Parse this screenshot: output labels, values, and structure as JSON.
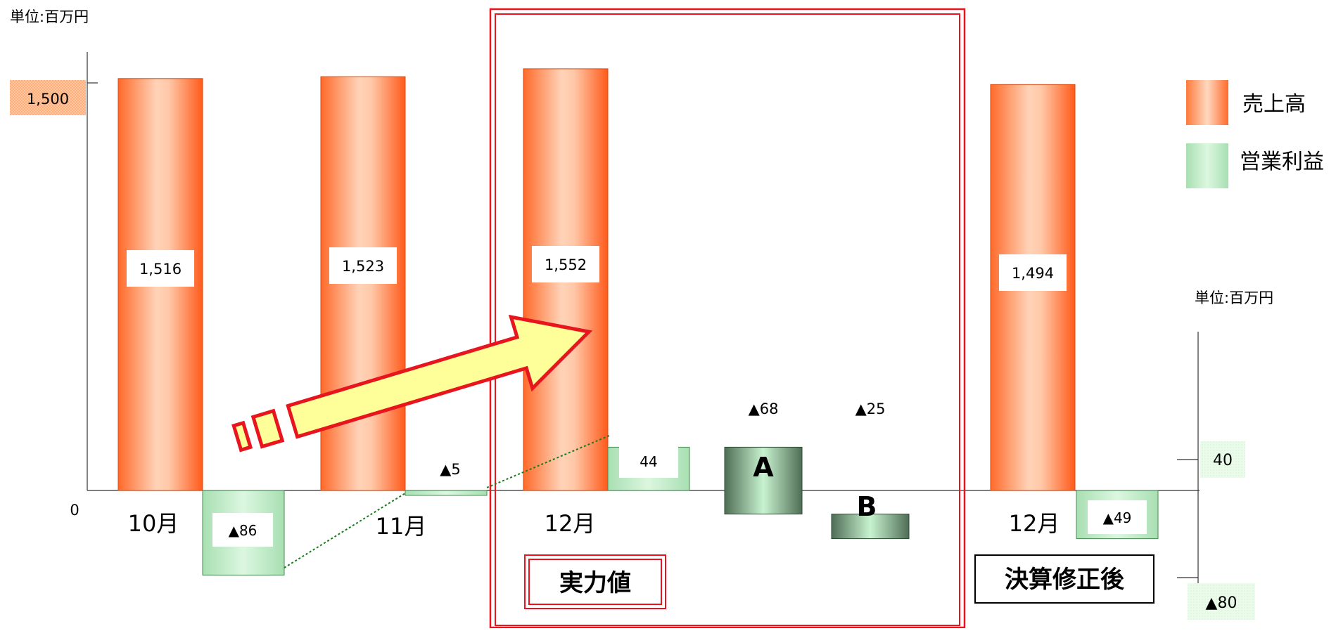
{
  "chart_data": {
    "type": "bar",
    "unit_left": "単位:百万円",
    "unit_right": "単位:百万円",
    "left_axis": {
      "ticks": [
        {
          "value": 0,
          "label": "0"
        },
        {
          "value": 1500,
          "label": "1,500"
        }
      ]
    },
    "right_axis": {
      "ticks": [
        {
          "value": 40,
          "label": "40"
        },
        {
          "value": -80,
          "label": "▲80"
        }
      ]
    },
    "categories": [
      "10月",
      "11月",
      "12月",
      "A",
      "B",
      "12月"
    ],
    "series": [
      {
        "name": "売上高",
        "color": "#ff6a2a",
        "values": [
          1516,
          1523,
          1552,
          null,
          null,
          1494
        ],
        "labels": [
          "1,516",
          "1,523",
          "1,552",
          "",
          "",
          "1,494"
        ]
      },
      {
        "name": "営業利益",
        "color": "#bff2c8",
        "values": [
          -86,
          -5,
          44,
          -68,
          -25,
          -49
        ],
        "labels": [
          "▲86",
          "▲5",
          "44",
          "▲68",
          "▲25",
          "▲49"
        ]
      }
    ],
    "legend": {
      "position": "right"
    },
    "grid": false
  },
  "group_labels": {
    "jitsuryoku": "実力値",
    "kessan": "決算修正後"
  },
  "colors": {
    "frame_red": "#e8141e",
    "arrow_fill": "#ffff99",
    "dotted_green": "#1a7a1a"
  }
}
